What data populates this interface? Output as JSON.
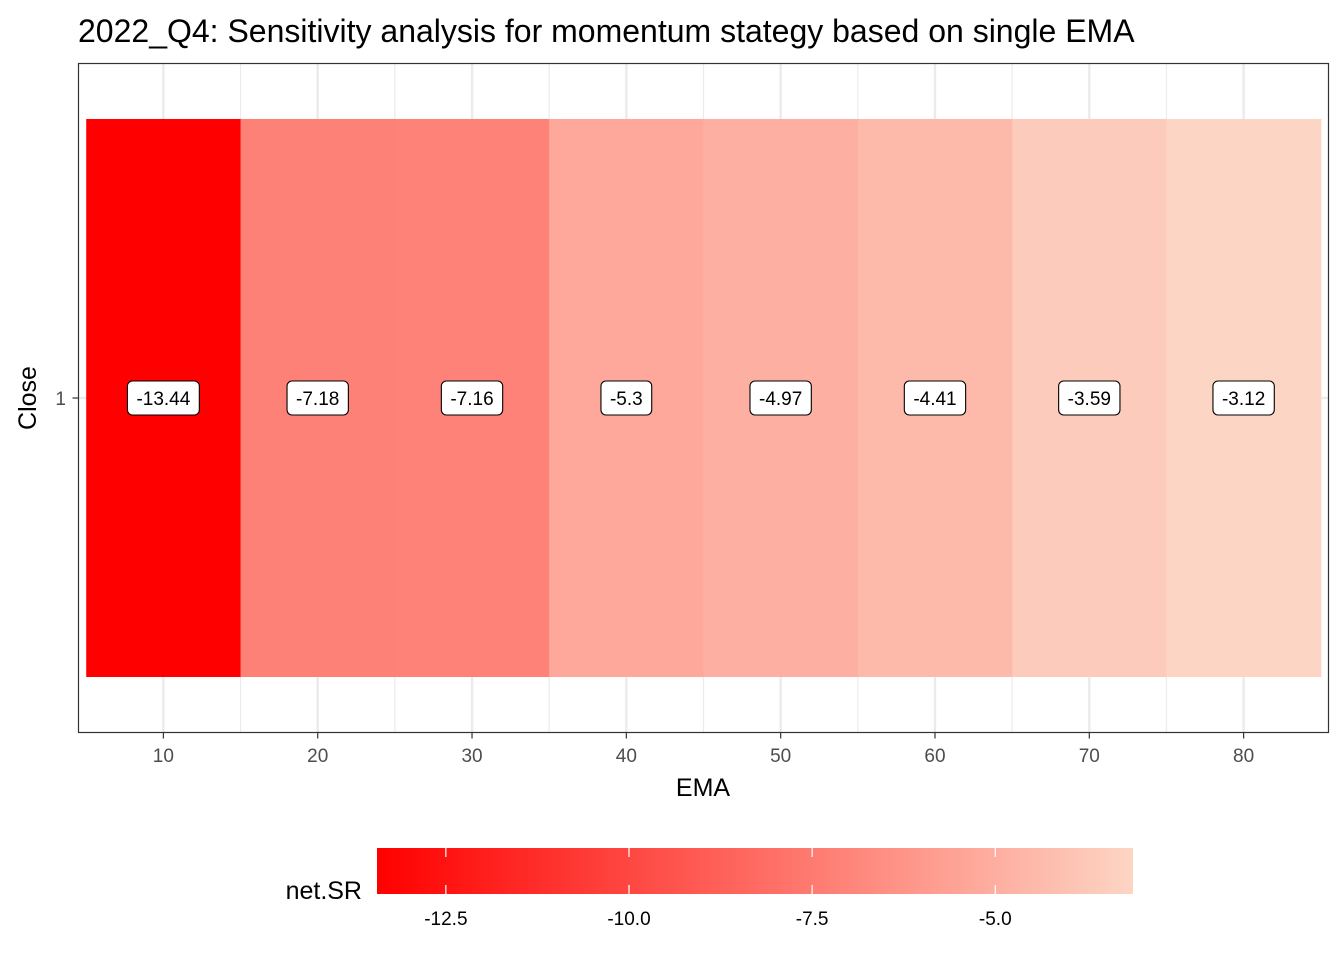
{
  "chart_data": {
    "type": "heatmap",
    "title": "2022_Q4: Sensitivity analysis for momentum stategy based on single EMA",
    "xlabel": "EMA",
    "ylabel": "Close",
    "x": [
      10,
      20,
      30,
      40,
      50,
      60,
      70,
      80
    ],
    "y_categories": [
      "1"
    ],
    "values": [
      -13.44,
      -7.18,
      -7.16,
      -5.3,
      -4.97,
      -4.41,
      -3.59,
      -3.12
    ],
    "value_labels": [
      "-13.44",
      "-7.18",
      "-7.16",
      "-5.3",
      "-4.97",
      "-4.41",
      "-3.59",
      "-3.12"
    ],
    "x_ticks": [
      10,
      20,
      30,
      40,
      50,
      60,
      70,
      80
    ],
    "xlim": [
      4.5,
      85.5
    ],
    "grid": true,
    "legend": {
      "title": "net.SR",
      "position": "bottom",
      "low_color": "#ff0000",
      "high_color": "#fdd5c4",
      "range": [
        -13.44,
        -3.12
      ],
      "ticks": [
        -12.5,
        -10.0,
        -7.5,
        -5.0
      ],
      "tick_labels": [
        "-12.5",
        "-10.0",
        "-7.5",
        "-5.0"
      ]
    }
  }
}
